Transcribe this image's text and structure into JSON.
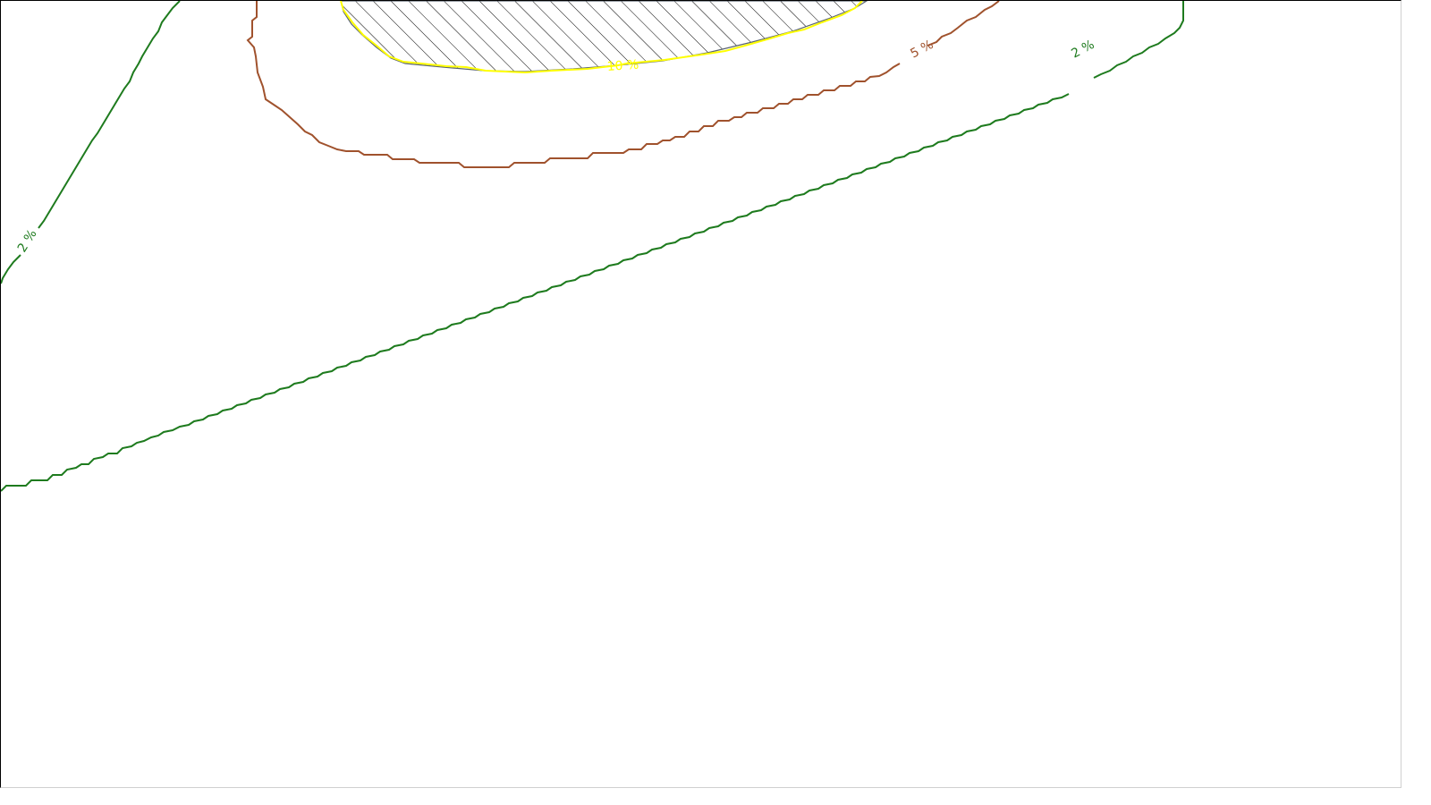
{
  "map": {
    "contours": [
      {
        "id": "contour-2pct-left",
        "label": "2 %",
        "color": "#1e7b1e"
      },
      {
        "id": "contour-2pct-main",
        "label": "2 %",
        "color": "#1e7b1e"
      },
      {
        "id": "contour-5pct",
        "label": "5 %",
        "color": "#a0522d"
      },
      {
        "id": "contour-10pct",
        "label": "10 %",
        "color": "#ffff00"
      }
    ],
    "hatched_zone": {
      "pattern": "diagonal-hatch",
      "line_color": "#000000"
    }
  }
}
